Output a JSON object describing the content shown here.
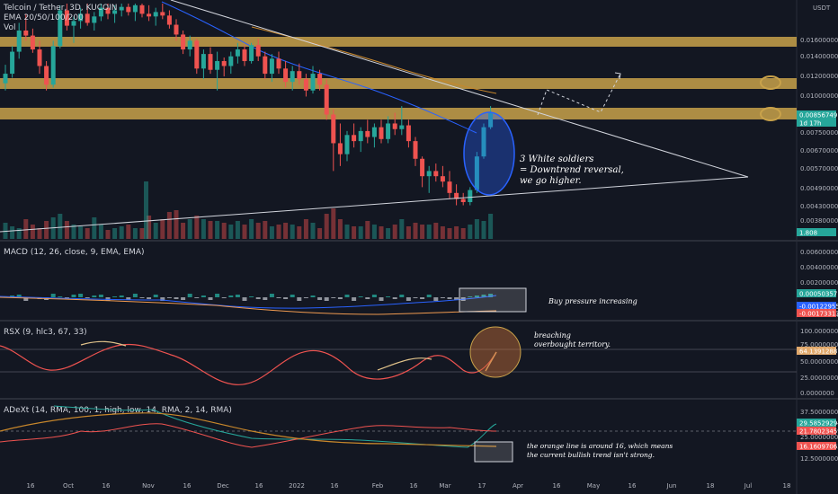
{
  "panes": {
    "price": {
      "title": "Telcoin / Tether, 3D, KUCOIN",
      "ema": "EMA 20/50/100/200",
      "vol": "Vol"
    },
    "macd": {
      "title": "MACD (12, 26, close, 9, EMA, EMA)"
    },
    "rsx": {
      "title": "RSX (9, hlc3, 67, 33)"
    },
    "adext": {
      "title": "ADeXt (14, RMA, 100, 1, high, low, 14, RMA, 2, 14, RMA)"
    }
  },
  "currency_label": "USDT",
  "price_ticks": [
    "0.01600000",
    "0.01400000",
    "0.01200000",
    "0.01000000",
    "0.00750000",
    "0.00670000",
    "0.00570000",
    "0.00490000",
    "0.00430000",
    "0.00380000"
  ],
  "price_tags": [
    {
      "text": "0.00856749",
      "bg": "#26a69a"
    },
    {
      "text": "1d 17h",
      "bg": "#26a69a"
    },
    {
      "text": "1.808",
      "bg": "#26a69a"
    }
  ],
  "macd_ticks": [
    "0.00600000",
    "0.00400000",
    "0.00200000",
    "-0.00200000"
  ],
  "macd_tags": [
    {
      "text": "0.00050357",
      "bg": "#26a69a"
    },
    {
      "text": "-0.00122955",
      "bg": "#2962ff"
    },
    {
      "text": "-0.00173313",
      "bg": "#ef5350"
    }
  ],
  "rsx_ticks": [
    "100.0000000",
    "75.0000000",
    "50.0000000",
    "25.0000000",
    "0.0000000"
  ],
  "rsx_tag": {
    "text": "64.13912887",
    "bg": "#e0a86b"
  },
  "adext_ticks": [
    "37.5000000",
    "25.0000000",
    "12.5000000"
  ],
  "adext_tags": [
    {
      "text": "29.58529294",
      "bg": "#26a69a"
    },
    {
      "text": "21.78023459",
      "bg": "#ef5350"
    },
    {
      "text": "16.16097063",
      "bg": "#ef5350"
    }
  ],
  "x_ticks": [
    "16",
    "Oct",
    "16",
    "Nov",
    "16",
    "Dec",
    "16",
    "2022",
    "16",
    "Feb",
    "16",
    "Mar",
    "17",
    "Apr",
    "16",
    "May",
    "16",
    "Jun",
    "18",
    "Jul",
    "18"
  ],
  "annotations": {
    "soldiers": [
      "3 White soldiers",
      "= Downtrend reversal,",
      "we go higher."
    ],
    "macd": "Buy pressure increasing",
    "rsx": [
      "breaching",
      "overbought territory."
    ],
    "adext": [
      "the orange line is around 16, which means",
      "the current bullish trend isn't strong."
    ]
  },
  "colors": {
    "up": "#26a69a",
    "down": "#ef5350",
    "zone": "#c9a24a",
    "ema_blue": "#2962ff",
    "ema_orange": "#c8872b"
  },
  "chart_data": {
    "type": "candlestick",
    "axis_scale": "log",
    "ylim": [
      0.0038,
      0.018
    ],
    "candles": [
      {
        "o": 0.0105,
        "h": 0.0119,
        "l": 0.01,
        "c": 0.0112
      },
      {
        "o": 0.0112,
        "h": 0.0135,
        "l": 0.0109,
        "c": 0.013
      },
      {
        "o": 0.013,
        "h": 0.0158,
        "l": 0.0124,
        "c": 0.015
      },
      {
        "o": 0.015,
        "h": 0.0168,
        "l": 0.014,
        "c": 0.0145
      },
      {
        "o": 0.0145,
        "h": 0.0152,
        "l": 0.0129,
        "c": 0.0132
      },
      {
        "o": 0.0132,
        "h": 0.014,
        "l": 0.0112,
        "c": 0.0118
      },
      {
        "o": 0.0118,
        "h": 0.0122,
        "l": 0.01,
        "c": 0.0104
      },
      {
        "o": 0.0104,
        "h": 0.014,
        "l": 0.0102,
        "c": 0.0135
      },
      {
        "o": 0.0135,
        "h": 0.0178,
        "l": 0.0133,
        "c": 0.0172
      },
      {
        "o": 0.0172,
        "h": 0.018,
        "l": 0.015,
        "c": 0.0155
      },
      {
        "o": 0.0155,
        "h": 0.0165,
        "l": 0.0138,
        "c": 0.016
      },
      {
        "o": 0.016,
        "h": 0.0175,
        "l": 0.0152,
        "c": 0.0168
      },
      {
        "o": 0.0168,
        "h": 0.018,
        "l": 0.0155,
        "c": 0.0158
      },
      {
        "o": 0.0158,
        "h": 0.017,
        "l": 0.015,
        "c": 0.0165
      },
      {
        "o": 0.0165,
        "h": 0.018,
        "l": 0.016,
        "c": 0.0175
      },
      {
        "o": 0.0175,
        "h": 0.018,
        "l": 0.0162,
        "c": 0.0168
      },
      {
        "o": 0.0168,
        "h": 0.0178,
        "l": 0.0158,
        "c": 0.0172
      },
      {
        "o": 0.0172,
        "h": 0.018,
        "l": 0.0165,
        "c": 0.0176
      },
      {
        "o": 0.0176,
        "h": 0.018,
        "l": 0.0166,
        "c": 0.017
      },
      {
        "o": 0.017,
        "h": 0.018,
        "l": 0.016,
        "c": 0.0178
      },
      {
        "o": 0.0178,
        "h": 0.018,
        "l": 0.0164,
        "c": 0.0168
      },
      {
        "o": 0.0168,
        "h": 0.0178,
        "l": 0.016,
        "c": 0.0165
      },
      {
        "o": 0.0165,
        "h": 0.0175,
        "l": 0.0155,
        "c": 0.017
      },
      {
        "o": 0.017,
        "h": 0.018,
        "l": 0.0162,
        "c": 0.0166
      },
      {
        "o": 0.0166,
        "h": 0.0172,
        "l": 0.0152,
        "c": 0.0156
      },
      {
        "o": 0.0156,
        "h": 0.0162,
        "l": 0.014,
        "c": 0.0146
      },
      {
        "o": 0.0146,
        "h": 0.015,
        "l": 0.0128,
        "c": 0.0132
      },
      {
        "o": 0.0132,
        "h": 0.0145,
        "l": 0.0126,
        "c": 0.014
      },
      {
        "o": 0.014,
        "h": 0.0142,
        "l": 0.0112,
        "c": 0.0116
      },
      {
        "o": 0.0116,
        "h": 0.0132,
        "l": 0.0108,
        "c": 0.0128
      },
      {
        "o": 0.0128,
        "h": 0.0134,
        "l": 0.0112,
        "c": 0.0115
      },
      {
        "o": 0.0115,
        "h": 0.013,
        "l": 0.01,
        "c": 0.0122
      },
      {
        "o": 0.0122,
        "h": 0.0125,
        "l": 0.011,
        "c": 0.0118
      },
      {
        "o": 0.0118,
        "h": 0.013,
        "l": 0.0112,
        "c": 0.0126
      },
      {
        "o": 0.0126,
        "h": 0.0138,
        "l": 0.012,
        "c": 0.0132
      },
      {
        "o": 0.0132,
        "h": 0.0136,
        "l": 0.0118,
        "c": 0.0122
      },
      {
        "o": 0.0122,
        "h": 0.0138,
        "l": 0.012,
        "c": 0.0136
      },
      {
        "o": 0.0136,
        "h": 0.0142,
        "l": 0.0122,
        "c": 0.0126
      },
      {
        "o": 0.0126,
        "h": 0.013,
        "l": 0.0108,
        "c": 0.0112
      },
      {
        "o": 0.0112,
        "h": 0.0128,
        "l": 0.0106,
        "c": 0.0124
      },
      {
        "o": 0.0124,
        "h": 0.013,
        "l": 0.0112,
        "c": 0.0116
      },
      {
        "o": 0.0116,
        "h": 0.0122,
        "l": 0.0102,
        "c": 0.0106
      },
      {
        "o": 0.0106,
        "h": 0.0118,
        "l": 0.01,
        "c": 0.0114
      },
      {
        "o": 0.0114,
        "h": 0.012,
        "l": 0.0104,
        "c": 0.0108
      },
      {
        "o": 0.0108,
        "h": 0.0112,
        "l": 0.0096,
        "c": 0.01
      },
      {
        "o": 0.01,
        "h": 0.0118,
        "l": 0.0098,
        "c": 0.0112
      },
      {
        "o": 0.0112,
        "h": 0.0115,
        "l": 0.01,
        "c": 0.0104
      },
      {
        "o": 0.0104,
        "h": 0.0108,
        "l": 0.0082,
        "c": 0.0085
      },
      {
        "o": 0.0085,
        "h": 0.0088,
        "l": 0.0058,
        "c": 0.007
      },
      {
        "o": 0.007,
        "h": 0.008,
        "l": 0.006,
        "c": 0.0065
      },
      {
        "o": 0.0065,
        "h": 0.0076,
        "l": 0.0062,
        "c": 0.0074
      },
      {
        "o": 0.0074,
        "h": 0.008,
        "l": 0.0068,
        "c": 0.0071
      },
      {
        "o": 0.0071,
        "h": 0.0078,
        "l": 0.0066,
        "c": 0.0076
      },
      {
        "o": 0.0076,
        "h": 0.0082,
        "l": 0.007,
        "c": 0.0073
      },
      {
        "o": 0.0073,
        "h": 0.008,
        "l": 0.0068,
        "c": 0.0078
      },
      {
        "o": 0.0078,
        "h": 0.0082,
        "l": 0.007,
        "c": 0.0072
      },
      {
        "o": 0.0072,
        "h": 0.0084,
        "l": 0.007,
        "c": 0.008
      },
      {
        "o": 0.008,
        "h": 0.0086,
        "l": 0.0074,
        "c": 0.0077
      },
      {
        "o": 0.0077,
        "h": 0.009,
        "l": 0.0074,
        "c": 0.0079
      },
      {
        "o": 0.0079,
        "h": 0.0082,
        "l": 0.0068,
        "c": 0.0071
      },
      {
        "o": 0.0071,
        "h": 0.0073,
        "l": 0.006,
        "c": 0.0063
      },
      {
        "o": 0.0063,
        "h": 0.0064,
        "l": 0.0052,
        "c": 0.0056
      },
      {
        "o": 0.0056,
        "h": 0.006,
        "l": 0.005,
        "c": 0.0058
      },
      {
        "o": 0.0058,
        "h": 0.0061,
        "l": 0.0054,
        "c": 0.0056
      },
      {
        "o": 0.0056,
        "h": 0.006,
        "l": 0.0052,
        "c": 0.0054
      },
      {
        "o": 0.0054,
        "h": 0.0058,
        "l": 0.0048,
        "c": 0.005
      },
      {
        "o": 0.005,
        "h": 0.0053,
        "l": 0.0046,
        "c": 0.0048
      },
      {
        "o": 0.0048,
        "h": 0.005,
        "l": 0.0046,
        "c": 0.0047
      },
      {
        "o": 0.0047,
        "h": 0.0052,
        "l": 0.0046,
        "c": 0.0051
      },
      {
        "o": 0.0051,
        "h": 0.0066,
        "l": 0.005,
        "c": 0.0064
      },
      {
        "o": 0.0064,
        "h": 0.008,
        "l": 0.0063,
        "c": 0.0078
      },
      {
        "o": 0.0078,
        "h": 0.009,
        "l": 0.0077,
        "c": 0.0086
      }
    ],
    "volume": [
      18,
      14,
      12,
      22,
      16,
      12,
      20,
      24,
      28,
      20,
      16,
      14,
      12,
      24,
      16,
      10,
      12,
      14,
      16,
      12,
      12,
      26,
      18,
      22,
      30,
      32,
      18,
      22,
      26,
      22,
      20,
      20,
      18,
      16,
      20,
      16,
      22,
      18,
      20,
      14,
      16,
      18,
      16,
      14,
      22,
      18,
      12,
      28,
      34,
      22,
      16,
      14,
      14,
      20,
      16,
      14,
      12,
      16,
      22,
      14,
      18,
      16,
      16,
      18,
      14,
      12,
      14,
      12,
      16,
      22,
      20,
      28
    ]
  }
}
